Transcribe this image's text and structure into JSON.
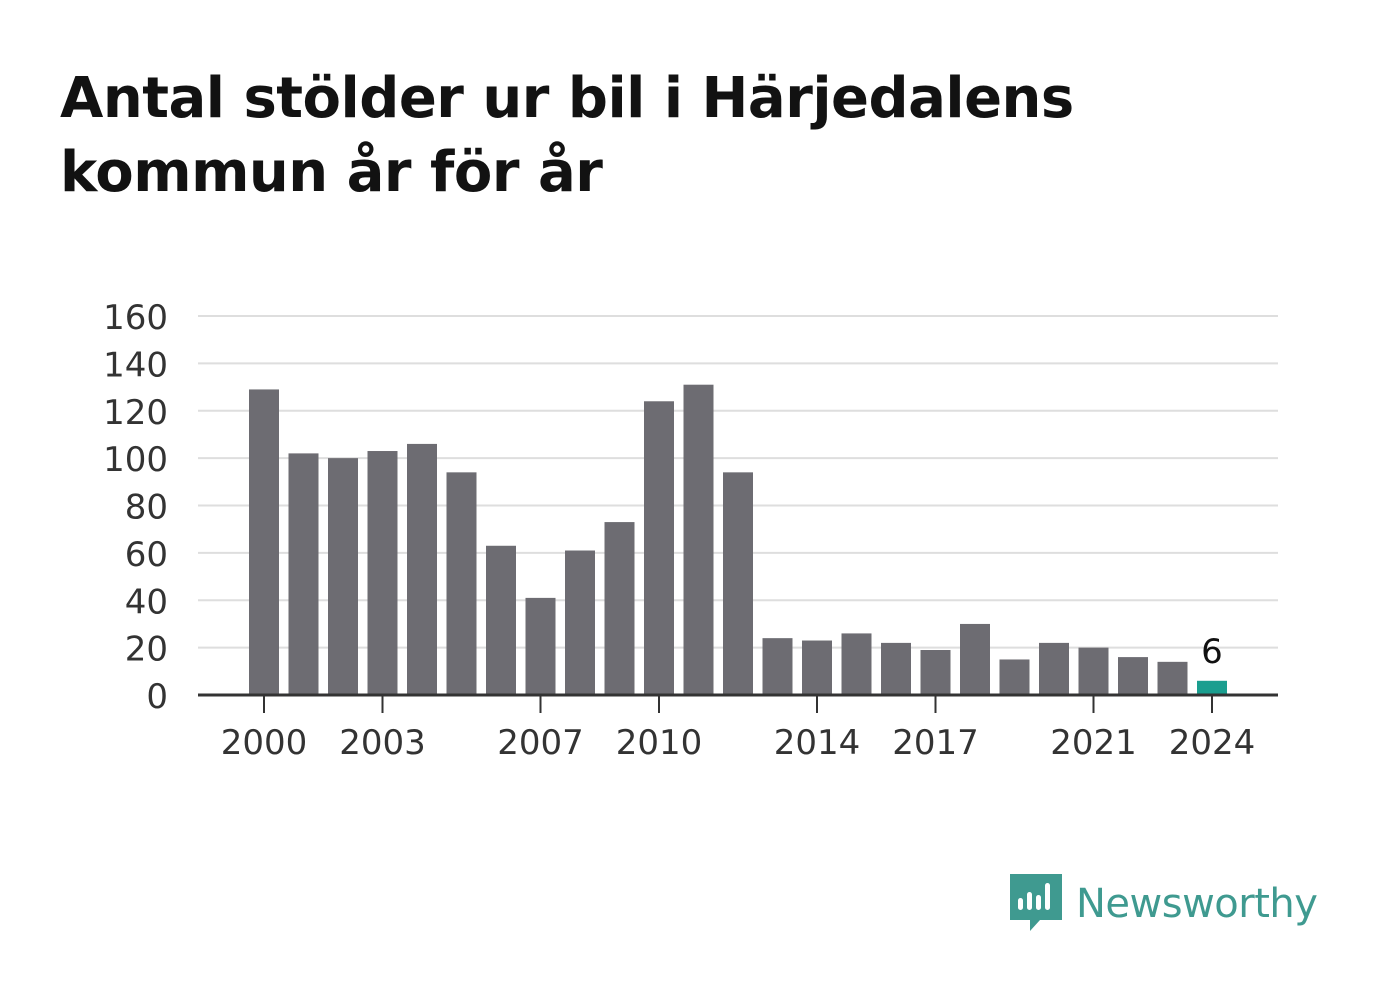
{
  "title_line1": "Antal stölder ur bil i Härjedalens",
  "title_line2": "kommun år för år",
  "brand": {
    "name": "Newsworthy",
    "icon": "newsworthy-logo-icon",
    "color": "#3f9a90"
  },
  "chart_data": {
    "type": "bar",
    "categories": [
      "2000",
      "2001",
      "2002",
      "2003",
      "2004",
      "2005",
      "2006",
      "2007",
      "2008",
      "2009",
      "2010",
      "2011",
      "2012",
      "2013",
      "2014",
      "2015",
      "2016",
      "2017",
      "2018",
      "2019",
      "2020",
      "2021",
      "2022",
      "2023",
      "2024"
    ],
    "values": [
      129,
      102,
      100,
      103,
      106,
      94,
      63,
      41,
      61,
      73,
      124,
      131,
      94,
      24,
      23,
      26,
      22,
      19,
      30,
      15,
      22,
      20,
      16,
      14,
      6
    ],
    "x_tick_labels": [
      "2000",
      "2003",
      "2007",
      "2010",
      "2014",
      "2017",
      "2021",
      "2024"
    ],
    "y_ticks": [
      0,
      20,
      40,
      60,
      80,
      100,
      120,
      140,
      160
    ],
    "ylim": [
      0,
      160
    ],
    "grid": true,
    "bar_color": "#6d6c72",
    "highlight_color": "#1a9e8f",
    "highlight_category": "2024",
    "data_label": {
      "category": "2024",
      "text": "6"
    },
    "title": "Antal stölder ur bil i Härjedalens kommun år för år",
    "xlabel": "",
    "ylabel": ""
  }
}
